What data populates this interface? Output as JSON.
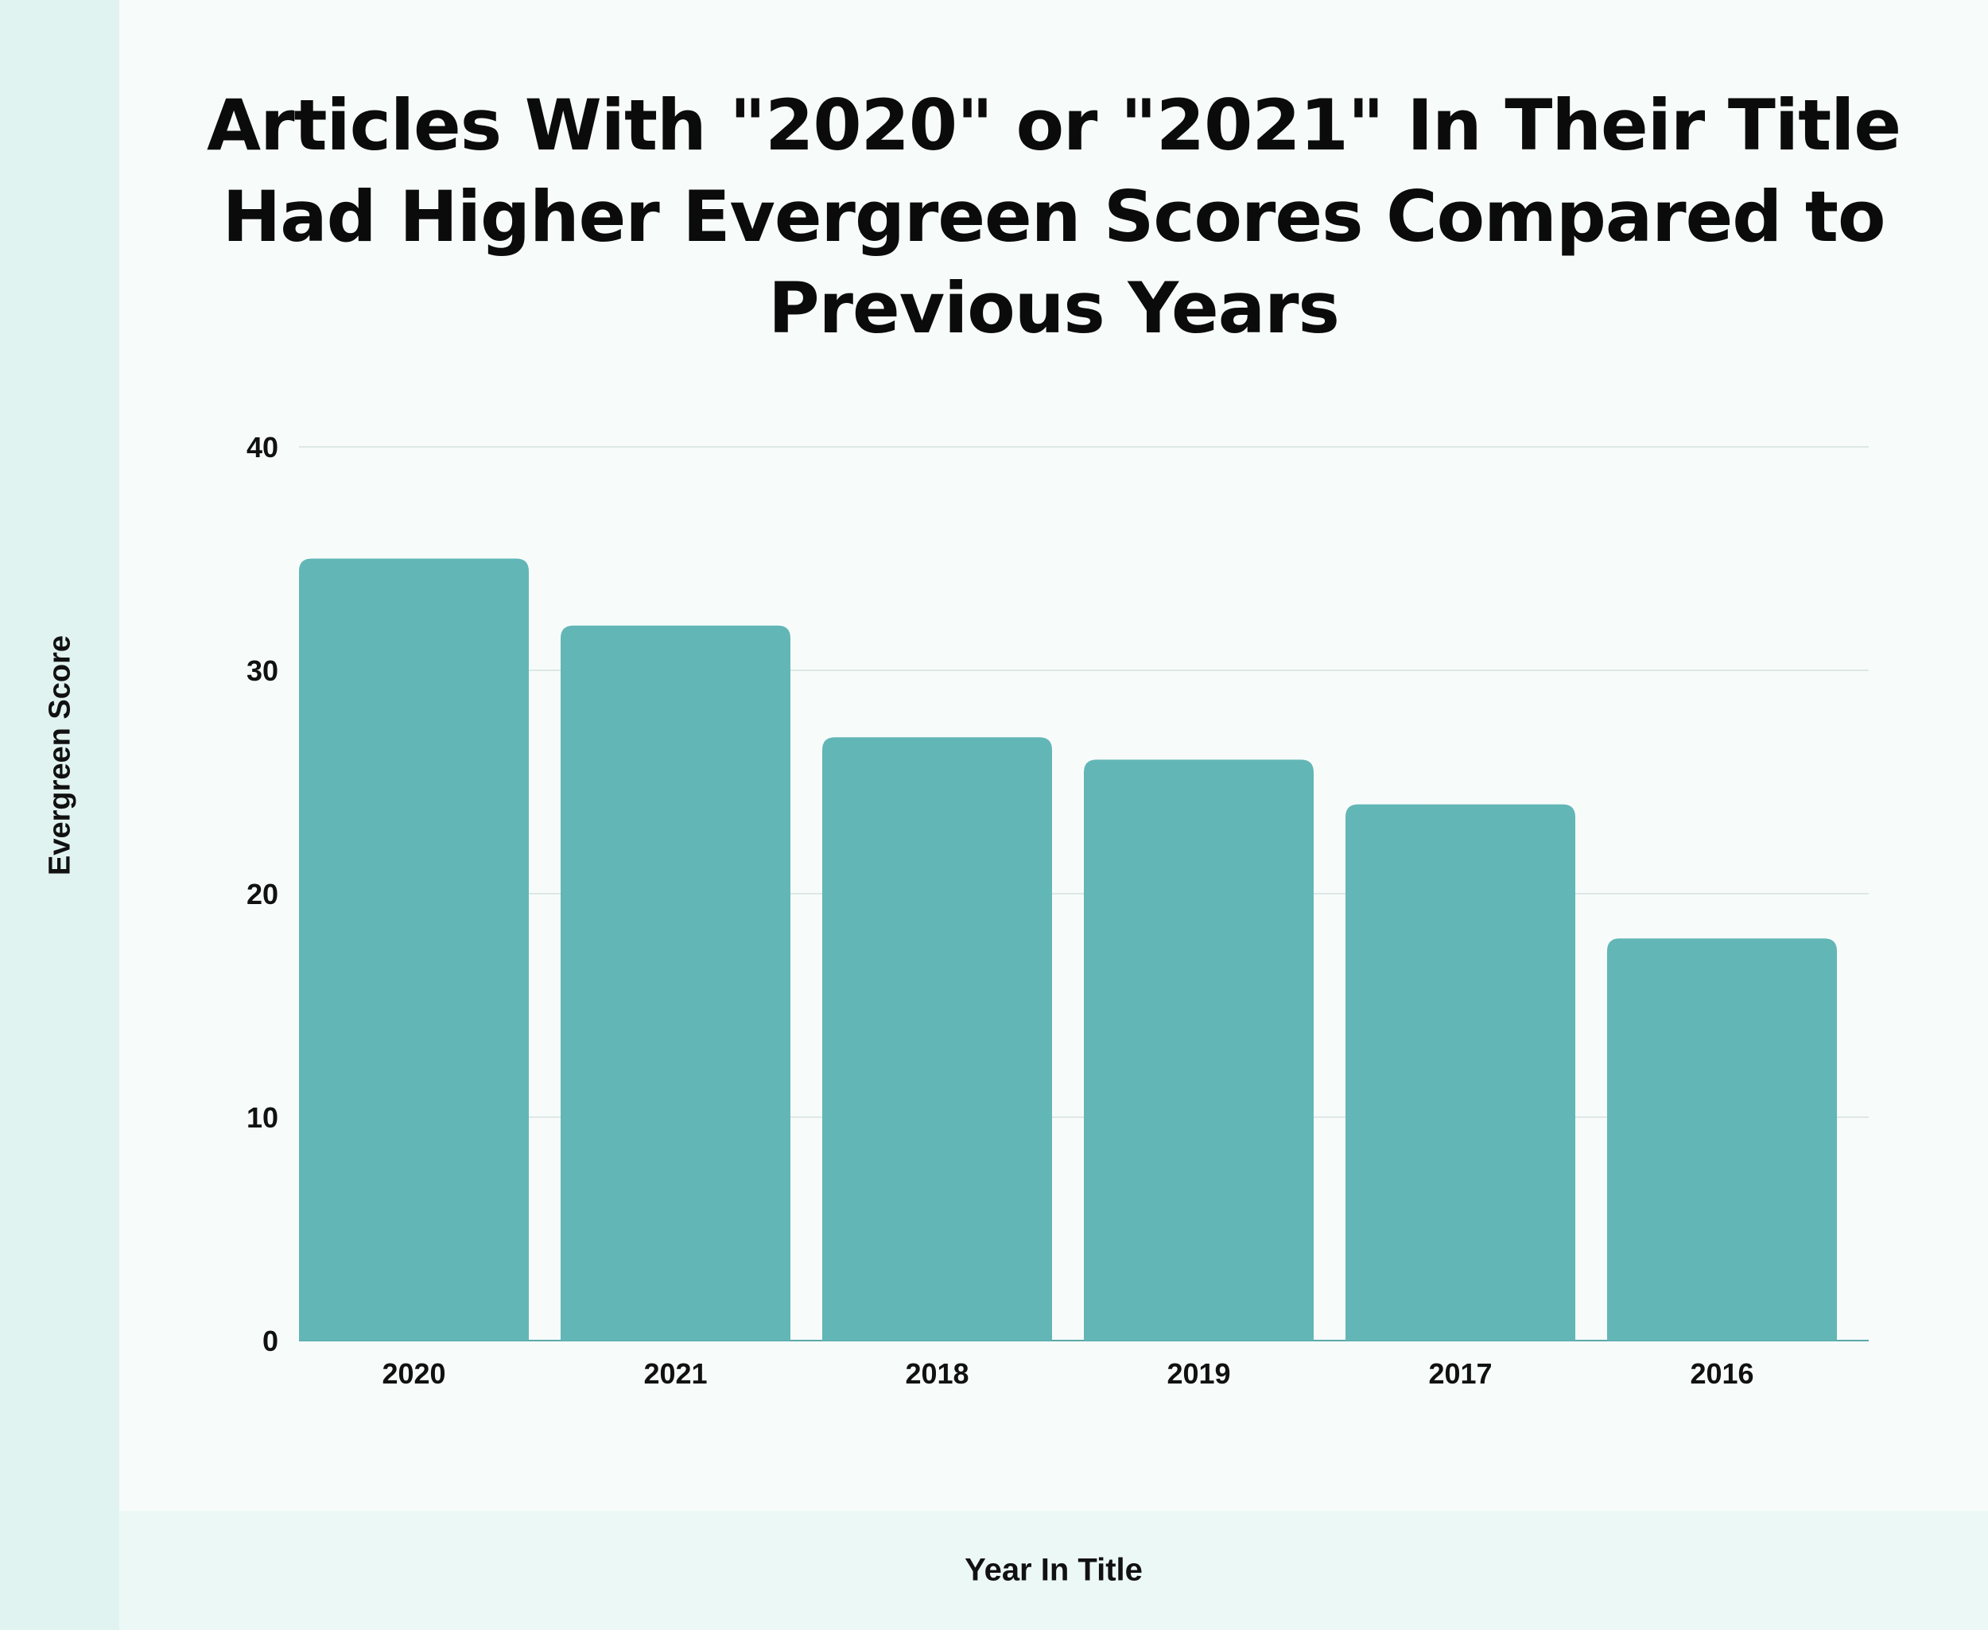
{
  "colors": {
    "bar": "#63b6b6",
    "grid": "#dde8e6",
    "background": "#f7fcfb",
    "left_band": "#e1f3f1",
    "bottom_band": "#ecf8f6"
  },
  "chart_data": {
    "type": "bar",
    "title": "Articles With \"2020\" or \"2021\" In Their Title Had Higher Evergreen Scores Compared to Previous Years",
    "xlabel": "Year In Title",
    "ylabel": "Evergreen Score",
    "categories": [
      "2020",
      "2021",
      "2018",
      "2019",
      "2017",
      "2016"
    ],
    "values": [
      35,
      32,
      27,
      26,
      24,
      18
    ],
    "ylim": [
      0,
      40
    ],
    "yticks": [
      0,
      10,
      20,
      30,
      40
    ],
    "grid": true
  }
}
